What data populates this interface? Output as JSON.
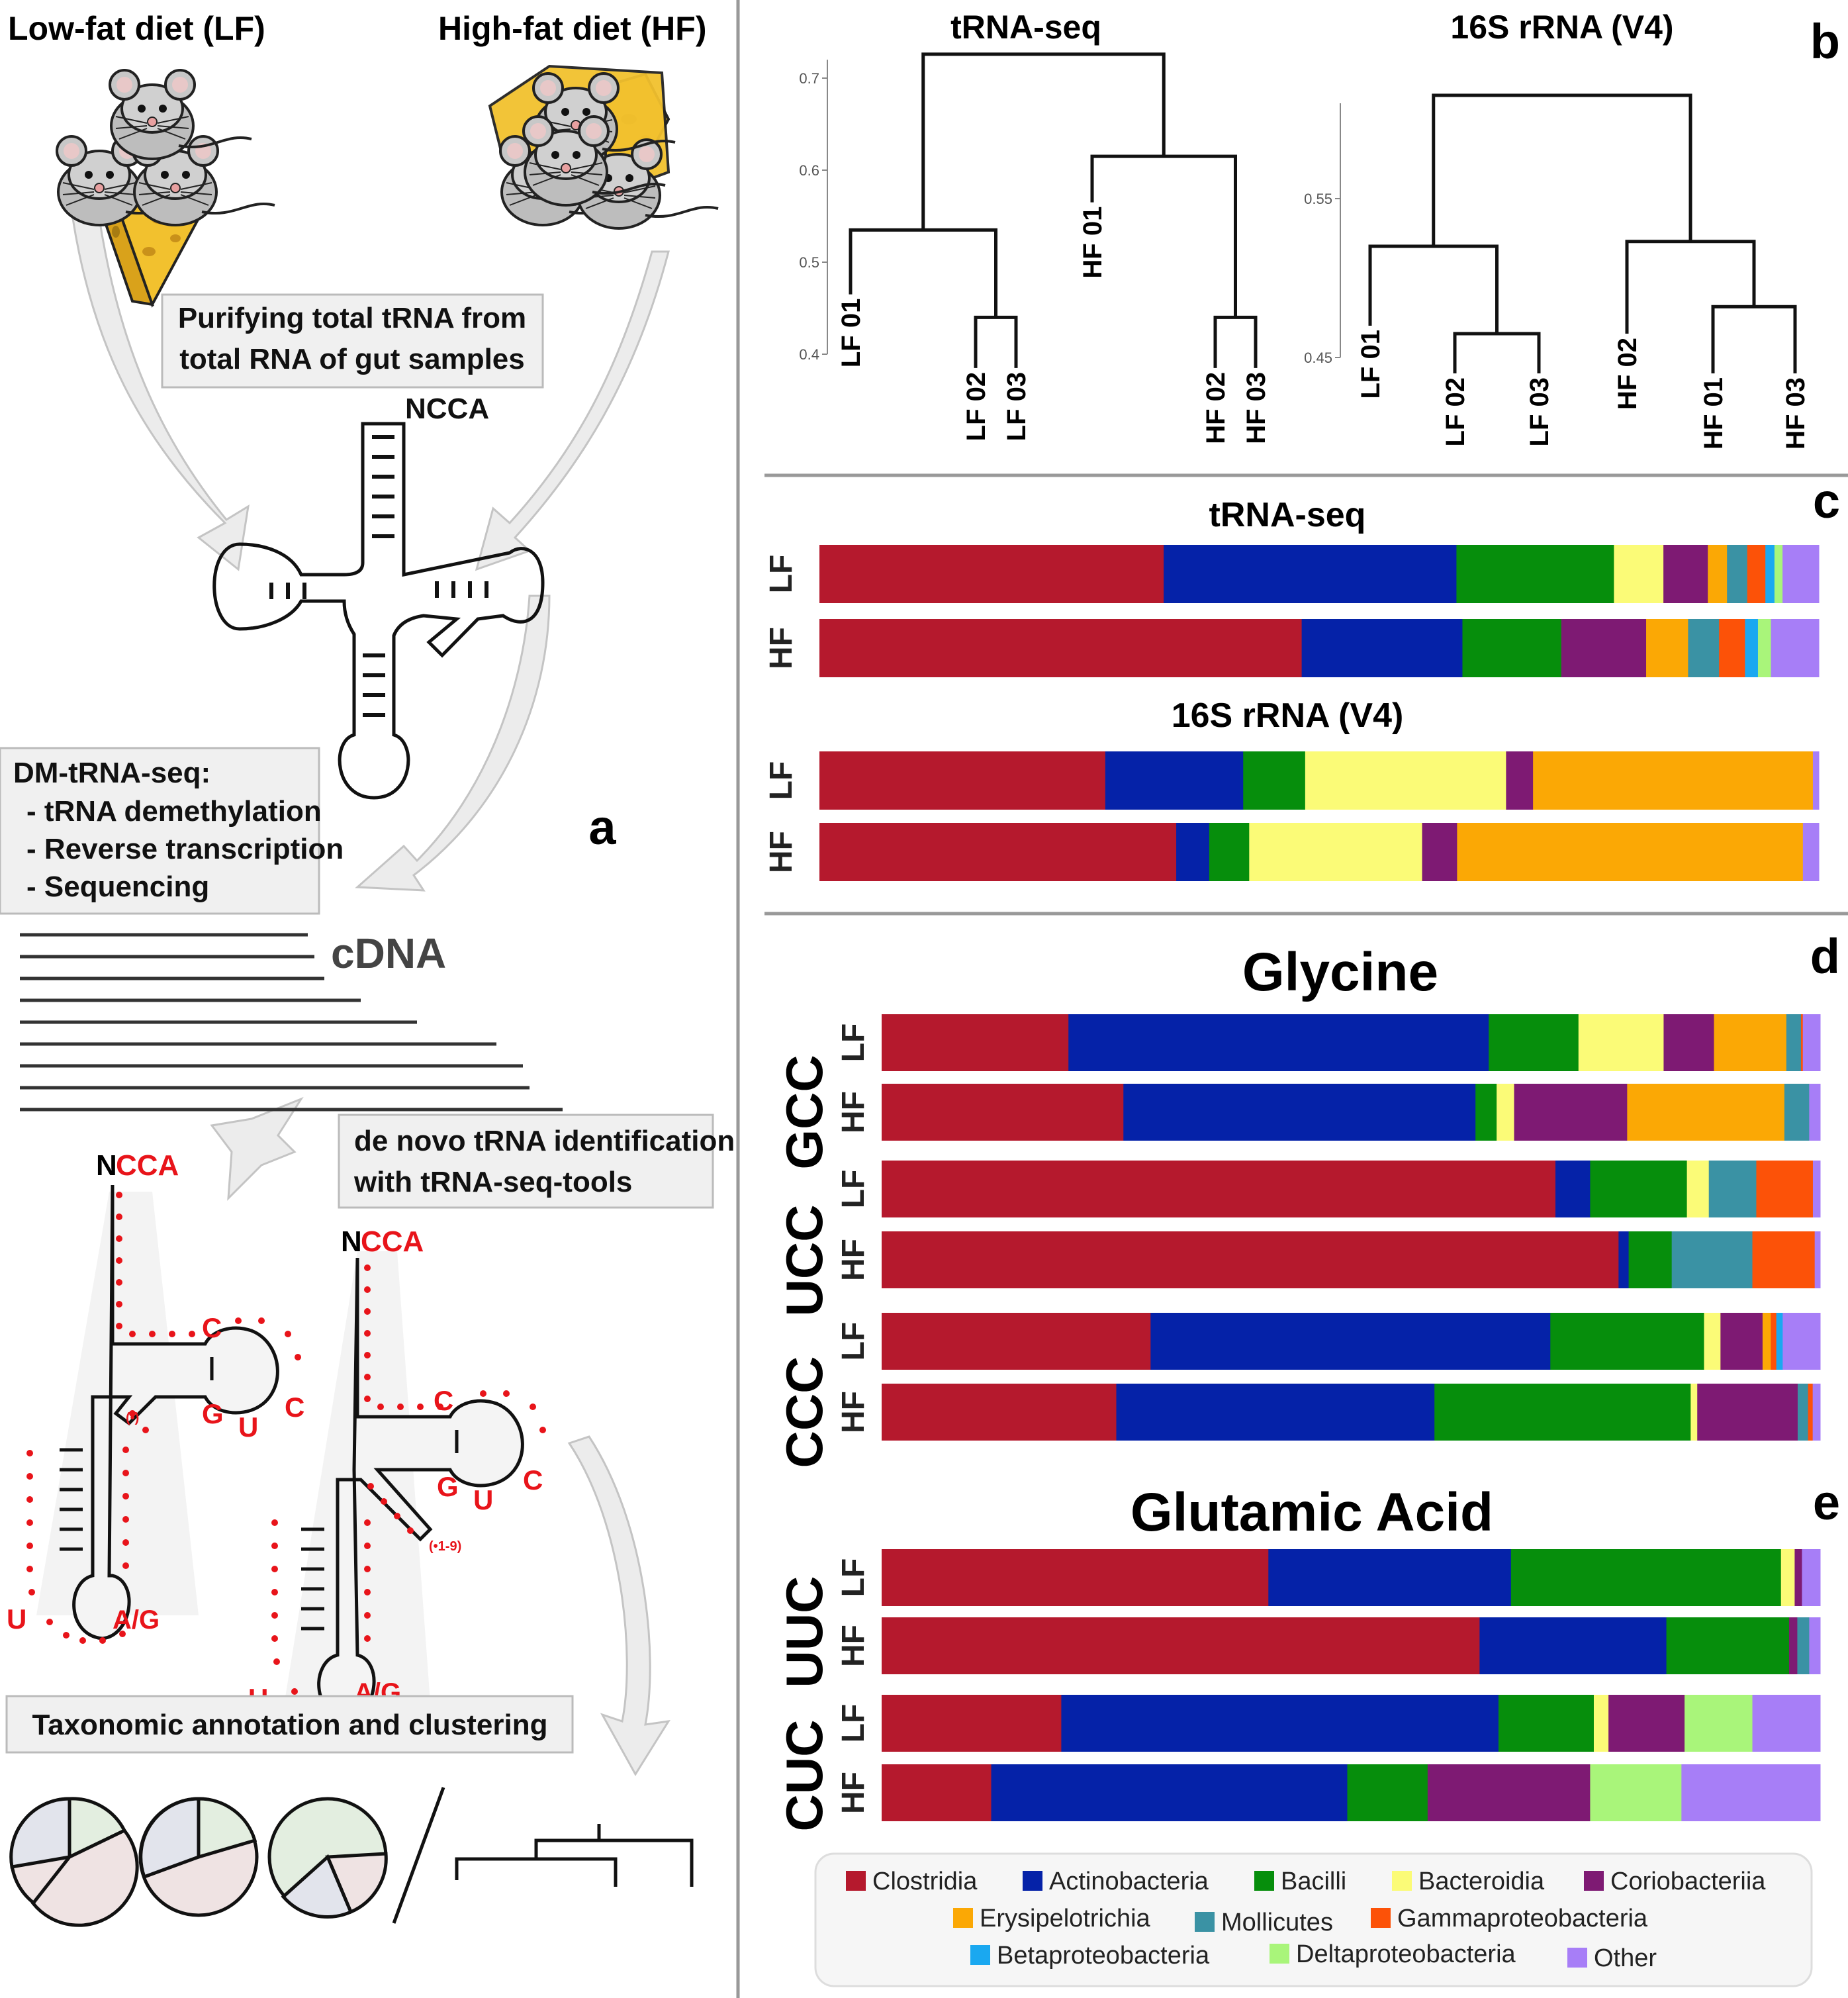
{
  "panel_a": {
    "label": "a",
    "low_fat": "Low-fat diet (LF)",
    "high_fat": "High-fat diet (HF)",
    "purify_line1": "Purifying total tRNA from",
    "purify_line2": "total RNA of gut samples",
    "ncca": "NCCA",
    "dm_title": "DM-tRNA-seq:",
    "dm_step1": "- tRNA demethylation",
    "dm_step2": "- Reverse transcription",
    "dm_step3": "- Sequencing",
    "cdna": "cDNA",
    "denovo_line1": "de novo tRNA identification",
    "denovo_line2": "with tRNA-seq-tools",
    "n": "N",
    "cca": "CCA",
    "c": "C",
    "g": "G",
    "u": "U",
    "ag": "A/G",
    "loop1": "(•)",
    "loop2": "(•1-9)",
    "taxo": "Taxonomic annotation and clustering"
  },
  "panel_b": {
    "label": "b",
    "trna_title": "tRNA-seq",
    "rrna_title": "16S rRNA (V4)",
    "trna_ticks": [
      "0.7",
      "0.6",
      "0.5",
      "0.4"
    ],
    "rrna_ticks": [
      "0.55",
      "0.45"
    ],
    "trna_leaves": [
      "LF 01",
      "LF 02",
      "LF 03",
      "HF 01",
      "HF 02",
      "HF 03"
    ],
    "rrna_leaves": [
      "LF 01",
      "LF 02",
      "LF 03",
      "HF 02",
      "HF 01",
      "HF 03"
    ]
  },
  "panel_c": {
    "label": "c",
    "trna_title": "tRNA-seq",
    "rrna_title": "16S rRNA (V4)"
  },
  "panel_d": {
    "label": "d",
    "title": "Glycine",
    "codons": [
      "GCC",
      "UCC",
      "CCC"
    ]
  },
  "panel_e": {
    "label": "e",
    "title": "Glutamic Acid",
    "codons": [
      "UUC",
      "CUC"
    ]
  },
  "rows": {
    "lf": "LF",
    "hf": "HF"
  },
  "colors": [
    "#b5192d",
    "#0522a8",
    "#068e0c",
    "#fbfb77",
    "#7e1a73",
    "#fba805",
    "#3a92a4",
    "#fc5208",
    "#1aa8f0",
    "#a9f57a",
    "#a77ef7"
  ],
  "chart_data": [
    {
      "type": "dendrogram",
      "title": "tRNA-seq",
      "yticks": [
        0.7,
        0.6,
        0.5,
        0.4
      ],
      "leaves": [
        "LF 01",
        "LF 02",
        "LF 03",
        "HF 01",
        "HF 02",
        "HF 03"
      ],
      "merges": [
        {
          "a": "LF 02",
          "b": "LF 03",
          "height": 0.44
        },
        {
          "a": "LF 01",
          "b": "(LF 02, LF 03)",
          "height": 0.535
        },
        {
          "a": "HF 02",
          "b": "HF 03",
          "height": 0.44
        },
        {
          "a": "HF 01",
          "b": "(HF 02, HF 03)",
          "height": 0.615
        },
        {
          "a": "LF",
          "b": "HF",
          "height": 0.726
        }
      ]
    },
    {
      "type": "dendrogram",
      "title": "16S rRNA (V4)",
      "yticks": [
        0.55,
        0.45
      ],
      "leaves": [
        "LF 01",
        "LF 02",
        "LF 03",
        "HF 02",
        "HF 01",
        "HF 03"
      ],
      "merges": [
        {
          "a": "LF 02",
          "b": "LF 03",
          "height": 0.465
        },
        {
          "a": "LF 01",
          "b": "(LF 02, LF 03)",
          "height": 0.52
        },
        {
          "a": "HF 01",
          "b": "HF 03",
          "height": 0.482
        },
        {
          "a": "HF 02",
          "b": "(HF 01, HF 03)",
          "height": 0.523
        },
        {
          "a": "LF",
          "b": "HF",
          "height": 0.615
        }
      ]
    },
    {
      "type": "bar",
      "orientation": "horizontal-stacked-percent",
      "categories": [
        "Clostridia",
        "Actinobacteria",
        "Bacilli",
        "Bacteroidia",
        "Coriobacteriia",
        "Erysipelotrichia",
        "Mollicutes",
        "Gammaproteobacteria",
        "Betaproteobacteria",
        "Deltaproteobacteria",
        "Other"
      ],
      "groups": [
        {
          "title": "tRNA-seq",
          "panel": "c",
          "rows": [
            {
              "label": "LF",
              "values": [
                34.1,
                29.0,
                15.6,
                4.9,
                4.4,
                1.9,
                2.0,
                1.8,
                0.9,
                0.8,
                3.6
              ]
            },
            {
              "label": "HF",
              "values": [
                48.3,
                16.1,
                9.9,
                0.0,
                8.5,
                4.2,
                3.1,
                2.6,
                1.3,
                1.3,
                4.8
              ]
            }
          ]
        },
        {
          "title": "16S rRNA (V4)",
          "panel": "c",
          "rows": [
            {
              "label": "LF",
              "values": [
                28.6,
                13.8,
                6.2,
                20.1,
                2.7,
                28.0,
                0.0,
                0.0,
                0.0,
                0.0,
                0.6
              ]
            },
            {
              "label": "HF",
              "values": [
                35.7,
                3.3,
                4.0,
                17.3,
                3.5,
                34.6,
                0.0,
                0.0,
                0.0,
                0.0,
                1.6
              ]
            }
          ]
        },
        {
          "title": "Glycine GCC",
          "panel": "d",
          "rows": [
            {
              "label": "LF",
              "values": [
                20.4,
                45.9,
                9.8,
                9.3,
                5.5,
                7.9,
                1.6,
                0.2,
                0.0,
                0.0,
                1.9
              ]
            },
            {
              "label": "HF",
              "values": [
                26.3,
                38.3,
                2.3,
                1.9,
                12.3,
                17.1,
                2.7,
                0.0,
                0.0,
                0.0,
                1.2
              ]
            }
          ]
        },
        {
          "title": "Glycine UCC",
          "panel": "d",
          "rows": [
            {
              "label": "LF",
              "values": [
                73.8,
                3.8,
                10.6,
                2.4,
                0.0,
                0.0,
                5.2,
                6.2,
                0.0,
                0.0,
                0.8
              ]
            },
            {
              "label": "HF",
              "values": [
                80.4,
                1.1,
                4.7,
                0.0,
                0.0,
                0.0,
                8.8,
                6.8,
                0.0,
                0.0,
                0.6
              ]
            }
          ]
        },
        {
          "title": "Glycine CCC",
          "panel": "d",
          "rows": [
            {
              "label": "LF",
              "values": [
                29.4,
                43.7,
                16.8,
                1.8,
                4.6,
                0.9,
                0.0,
                0.6,
                0.7,
                0.0,
                4.1
              ]
            },
            {
              "label": "HF",
              "values": [
                25.0,
                33.9,
                27.3,
                0.7,
                10.7,
                0.0,
                1.1,
                0.5,
                0.0,
                0.0,
                0.8
              ]
            }
          ]
        },
        {
          "title": "Glutamic Acid UUC",
          "panel": "e",
          "rows": [
            {
              "label": "LF",
              "values": [
                42.4,
                26.6,
                29.6,
                1.5,
                0.8,
                0.0,
                0.0,
                0.0,
                0.0,
                0.0,
                2.0
              ]
            },
            {
              "label": "HF",
              "values": [
                65.3,
                20.4,
                13.4,
                0.0,
                0.9,
                0.0,
                1.3,
                0.0,
                0.0,
                0.0,
                1.2
              ]
            }
          ]
        },
        {
          "title": "Glutamic Acid CUC",
          "panel": "e",
          "rows": [
            {
              "label": "LF",
              "values": [
                19.6,
                47.7,
                10.4,
                1.6,
                8.3,
                0.0,
                0.0,
                0.0,
                0.0,
                7.4,
                7.4
              ]
            },
            {
              "label": "HF",
              "values": [
                12.0,
                39.0,
                8.8,
                0.0,
                17.8,
                0.0,
                0.0,
                0.0,
                0.0,
                10.0,
                15.2
              ]
            }
          ]
        }
      ]
    }
  ]
}
